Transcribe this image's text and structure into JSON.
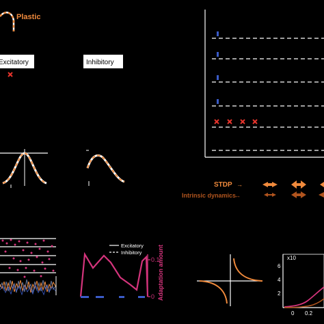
{
  "labels": {
    "plastic": "Plastic",
    "excitatory": "Excitatory",
    "inhibitory": "Inhibitory",
    "stdp": "STDP",
    "intrinsic_dynamics": "Intrinsic dynamics",
    "legend_excitatory": "Excitatory",
    "legend_inhibitory": "Inhibitory",
    "adaptation_amount": "Adaptation amount",
    "tick_0_1": "0.1",
    "tick_0": "0",
    "tick_x10": "x10",
    "tick_6": "6",
    "tick_4": "4",
    "tick_2": "2",
    "tick_x0": "0",
    "tick_x0_2": "0.2"
  },
  "colors": {
    "background": "#000000",
    "excitatory_orange": "#f08a3c",
    "inhibitory_brown": "#b0541e",
    "raster_magenta": "#d4347c",
    "spike_blue": "#3a5bc8",
    "cross_red": "#e8342c",
    "noise_gray": "#5a6a8a",
    "line_white": "#ffffff"
  },
  "icons": {
    "cross": "cross-marker",
    "arrow_pair": "bidirectional-arrow"
  }
}
